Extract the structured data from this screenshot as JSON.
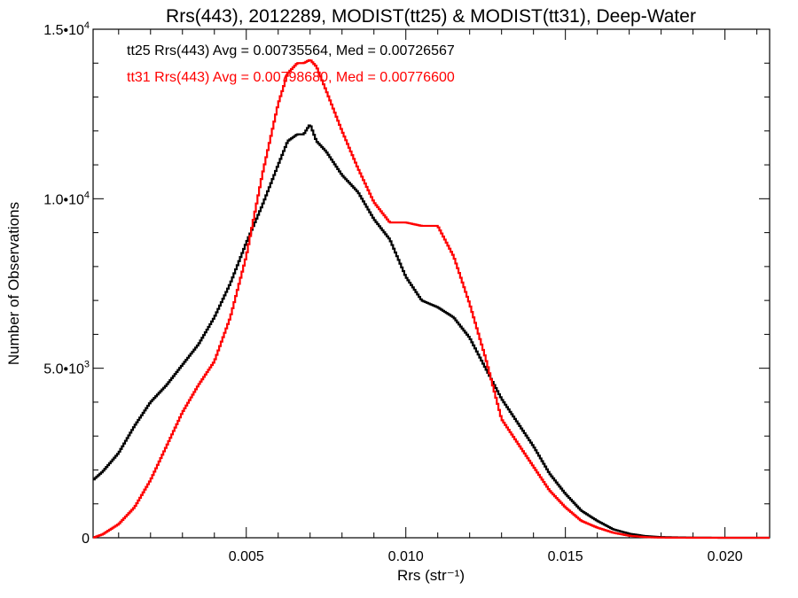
{
  "chart_data": {
    "type": "line",
    "title": "Rrs(443), 2012289, MODIST(tt25) & MODIST(tt31), Deep-Water",
    "xlabel": "Rrs (str⁻¹)",
    "ylabel": "Number of Observations",
    "xlim": [
      0.0002,
      0.0214
    ],
    "ylim": [
      0,
      15000
    ],
    "x_ticks": [
      {
        "value": 0.005,
        "label": "0.005"
      },
      {
        "value": 0.01,
        "label": "0.010"
      },
      {
        "value": 0.015,
        "label": "0.015"
      },
      {
        "value": 0.02,
        "label": "0.020"
      }
    ],
    "y_ticks": [
      {
        "value": 0,
        "label": "0"
      },
      {
        "value": 5000,
        "label": "5.0•10",
        "sup": "3"
      },
      {
        "value": 10000,
        "label": "1.0•10",
        "sup": "4"
      },
      {
        "value": 15000,
        "label": "1.5•10",
        "sup": "4"
      }
    ],
    "grid": false,
    "legend_position": "top-left",
    "series": [
      {
        "name": "tt25",
        "color": "#000000",
        "annotation": "tt25 Rrs(443) Avg = 0.00735564, Med = 0.00726567",
        "x": [
          0.0002,
          0.0005,
          0.001,
          0.0015,
          0.002,
          0.0025,
          0.003,
          0.0035,
          0.004,
          0.0045,
          0.005,
          0.0055,
          0.006,
          0.0063,
          0.0066,
          0.0068,
          0.007,
          0.0072,
          0.0075,
          0.008,
          0.0085,
          0.009,
          0.0095,
          0.01,
          0.0105,
          0.011,
          0.0115,
          0.012,
          0.0125,
          0.013,
          0.0135,
          0.014,
          0.0145,
          0.015,
          0.0155,
          0.016,
          0.0165,
          0.017,
          0.0175,
          0.018,
          0.019,
          0.02,
          0.0214
        ],
        "values": [
          1700,
          1950,
          2500,
          3300,
          4000,
          4500,
          5100,
          5700,
          6500,
          7500,
          8700,
          9800,
          11000,
          11700,
          11900,
          11900,
          12200,
          11700,
          11400,
          10700,
          10200,
          9400,
          8800,
          7700,
          7000,
          6800,
          6500,
          5900,
          5000,
          4100,
          3400,
          2700,
          1900,
          1300,
          800,
          500,
          250,
          120,
          50,
          20,
          5,
          0,
          0
        ]
      },
      {
        "name": "tt31",
        "color": "#ff0000",
        "annotation": "tt31 Rrs(443) Avg = 0.00798680, Med = 0.00776600",
        "x": [
          0.0002,
          0.0005,
          0.001,
          0.0015,
          0.002,
          0.0025,
          0.003,
          0.0035,
          0.004,
          0.0045,
          0.005,
          0.0055,
          0.006,
          0.0063,
          0.0066,
          0.0068,
          0.007,
          0.0072,
          0.0075,
          0.008,
          0.0085,
          0.009,
          0.0095,
          0.01,
          0.0105,
          0.011,
          0.0115,
          0.012,
          0.0125,
          0.013,
          0.0135,
          0.014,
          0.0145,
          0.015,
          0.0155,
          0.016,
          0.0165,
          0.017,
          0.0175,
          0.018,
          0.019,
          0.02,
          0.0214
        ],
        "values": [
          0,
          100,
          400,
          900,
          1700,
          2700,
          3700,
          4500,
          5200,
          6500,
          8300,
          10700,
          12800,
          13700,
          14000,
          14000,
          14100,
          13900,
          13200,
          12000,
          10900,
          9900,
          9300,
          9300,
          9200,
          9200,
          8300,
          6900,
          5300,
          3500,
          2800,
          2100,
          1400,
          900,
          500,
          300,
          150,
          60,
          20,
          5,
          0,
          0,
          0
        ]
      }
    ]
  }
}
